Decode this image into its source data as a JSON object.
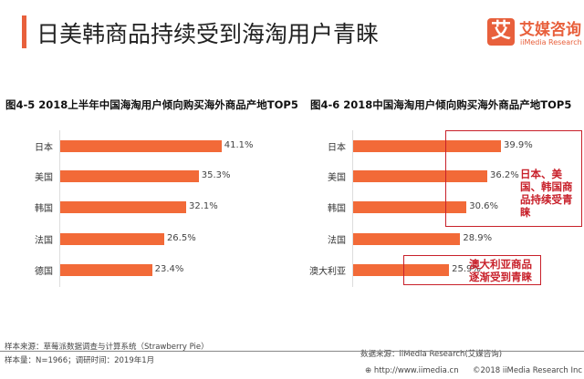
{
  "header": {
    "title": "日美韩商品持续受到海淘用户青睐"
  },
  "logo": {
    "mark": "艾",
    "cn": "艾媒咨询",
    "en": "iiMedia Research"
  },
  "colors": {
    "bar": "#f26a38",
    "accent": "#e8603c",
    "annotation": "#c8202a"
  },
  "chart_data": [
    {
      "type": "bar",
      "orientation": "horizontal",
      "title": "图4-5 2018上半年中国海淘用户倾向购买海外商品产地TOP5",
      "categories": [
        "日本",
        "美国",
        "韩国",
        "法国",
        "德国"
      ],
      "values": [
        41.1,
        35.3,
        32.1,
        26.5,
        23.4
      ],
      "labels": [
        "41.1%",
        "35.3%",
        "32.1%",
        "26.5%",
        "23.4%"
      ],
      "unit": "%",
      "grid": false
    },
    {
      "type": "bar",
      "orientation": "horizontal",
      "title": "图4-6 2018中国海淘用户倾向购买海外商品产地TOP5",
      "categories": [
        "日本",
        "美国",
        "韩国",
        "法国",
        "澳大利亚"
      ],
      "values": [
        39.9,
        36.2,
        30.6,
        28.9,
        25.9
      ],
      "labels": [
        "39.9%",
        "36.2%",
        "30.6%",
        "28.9%",
        "25.9%"
      ],
      "unit": "%",
      "grid": false,
      "annotations": [
        "日本、美国、韩国商品持续受青睐",
        "澳大利亚商品逐渐受到青睐"
      ]
    }
  ],
  "footer": {
    "sample_source": "样本来源：草莓派数据调查与计算系统（Strawberry Pie）",
    "sample_size": "样本量：N=1966；调研时间：2019年1月",
    "data_source": "数据来源：iiMedia Research(艾媒咨询)",
    "url": "http://www.iimedia.cn",
    "copyright": "©2018  iiMedia Research Inc"
  }
}
